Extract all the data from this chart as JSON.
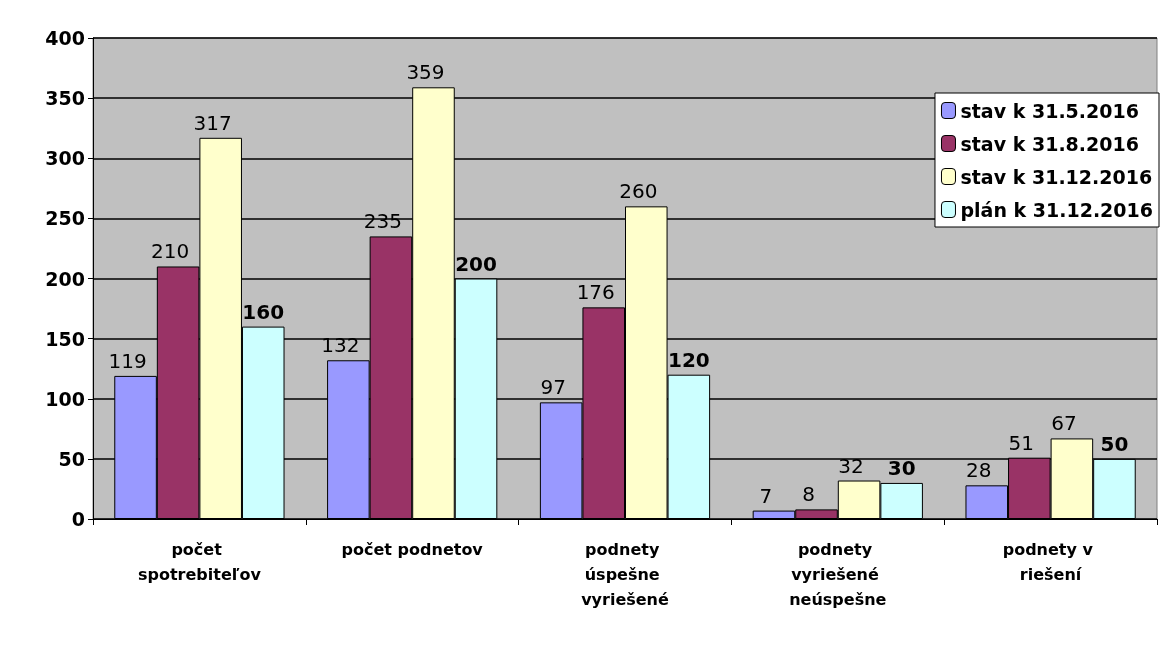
{
  "chart_data": {
    "type": "bar",
    "categories": [
      "počet spotrebiteľov",
      "počet podnetov",
      "podnety úspešne vyriešené",
      "podnety vyriešené neúspešne",
      "podnety v riešení"
    ],
    "series": [
      {
        "name": "stav k 31.5.2016",
        "color": "#9999ff",
        "values": [
          119,
          132,
          97,
          7,
          28
        ]
      },
      {
        "name": "stav k 31.8.2016",
        "color": "#993366",
        "values": [
          210,
          235,
          176,
          8,
          51
        ]
      },
      {
        "name": "stav k 31.12.2016",
        "color": "#ffffcc",
        "values": [
          317,
          359,
          260,
          32,
          67
        ]
      },
      {
        "name": "plán k 31.12.2016",
        "color": "#ccffff",
        "values": [
          160,
          200,
          120,
          30,
          50
        ]
      }
    ],
    "ylim": [
      0,
      400
    ],
    "yticks": [
      0,
      50,
      100,
      150,
      200,
      250,
      300,
      350,
      400
    ],
    "grid": "y",
    "legend": "top right",
    "data_labels": true
  }
}
